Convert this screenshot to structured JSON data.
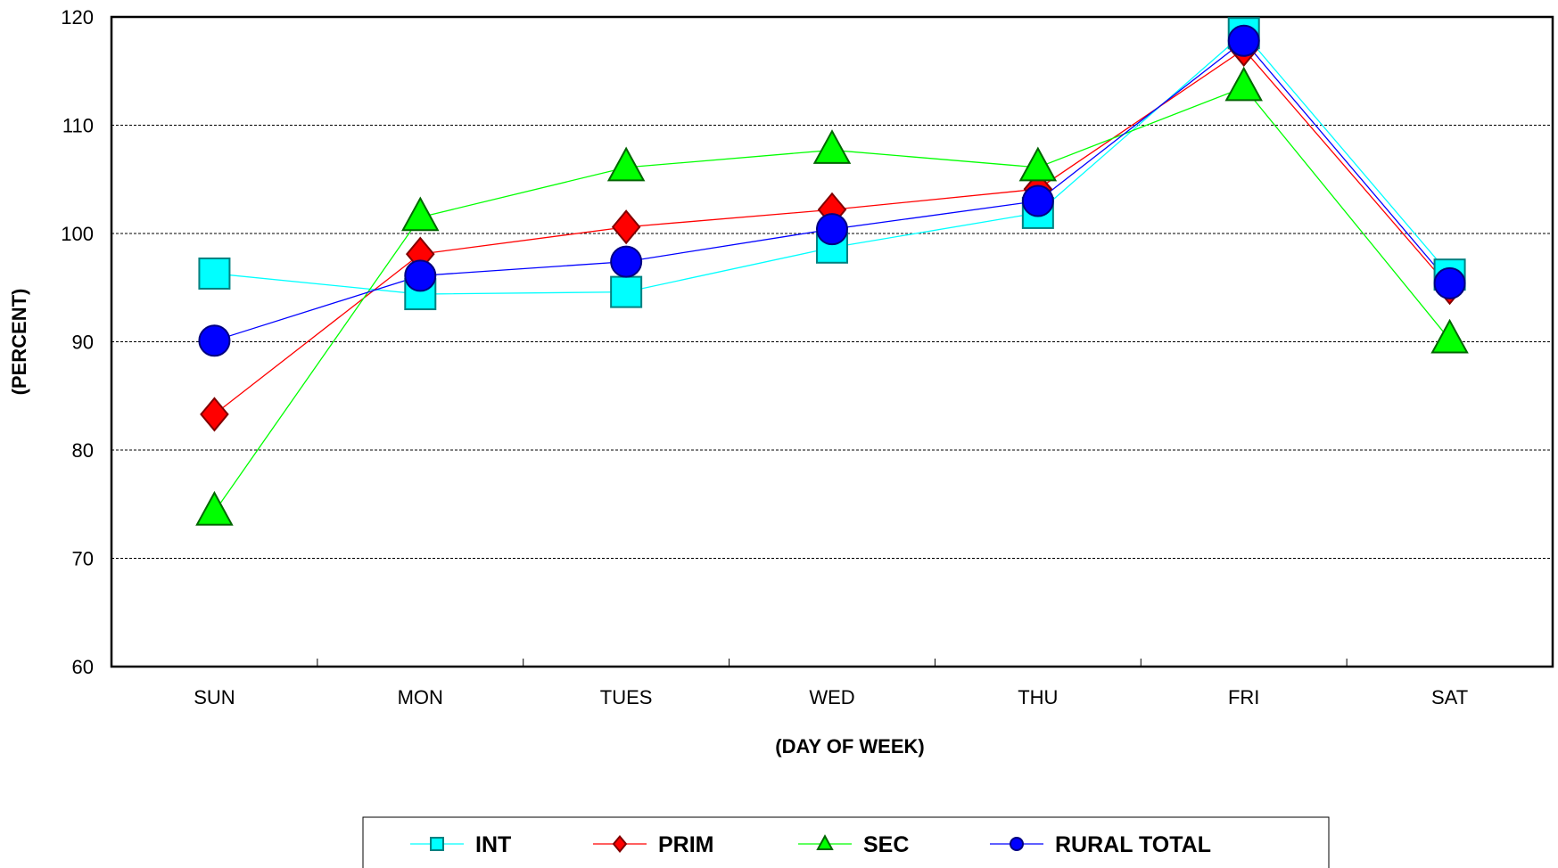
{
  "chart_data": {
    "type": "line",
    "title": "",
    "xlabel": "(DAY OF WEEK)",
    "ylabel": "(PERCENT)",
    "ylim": [
      60,
      120
    ],
    "yticks": [
      60,
      70,
      80,
      90,
      100,
      110,
      120
    ],
    "grid": "horizontal dashed",
    "legend_position": "bottom",
    "categories": [
      "SUN",
      "MON",
      "TUES",
      "WED",
      "THU",
      "FRI",
      "SAT"
    ],
    "series": [
      {
        "name": "INT",
        "color": "#00ffff",
        "marker": "square",
        "values": [
          96.3,
          94.4,
          94.6,
          98.7,
          101.9,
          118.5,
          96.2
        ]
      },
      {
        "name": "PRIM",
        "color": "#ff0000",
        "marker": "diamond",
        "values": [
          83.3,
          98.1,
          100.6,
          102.2,
          104.1,
          117.0,
          95.0
        ]
      },
      {
        "name": "SEC",
        "color": "#00ff00",
        "marker": "triangle",
        "values": [
          74.3,
          101.5,
          106.1,
          107.7,
          106.1,
          113.5,
          90.2
        ]
      },
      {
        "name": "RURAL TOTAL",
        "color": "#0000ff",
        "marker": "circle",
        "values": [
          90.1,
          96.1,
          97.4,
          100.4,
          103.0,
          117.8,
          95.4
        ]
      }
    ]
  }
}
